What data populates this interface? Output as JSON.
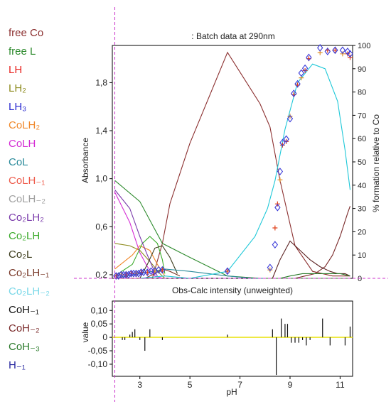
{
  "legend": [
    {
      "label": "free Co",
      "color": "#8b2f2f"
    },
    {
      "label": "free L",
      "color": "#2d8a2d"
    },
    {
      "label": "LH",
      "color": "#e8231f"
    },
    {
      "label": "LH₂",
      "color": "#8c8a1c"
    },
    {
      "label": "LH₃",
      "color": "#2a2ad0"
    },
    {
      "label": "CoLH₂",
      "color": "#f0882a"
    },
    {
      "label": "CoLH",
      "color": "#d42ad4"
    },
    {
      "label": "CoL",
      "color": "#2a8a9a"
    },
    {
      "label": "CoLH₋₁",
      "color": "#ee5a4a"
    },
    {
      "label": "CoLH₋₂",
      "color": "#a0a0a0"
    },
    {
      "label": "Co₂LH₂",
      "color": "#7a3aaa"
    },
    {
      "label": "Co₂LH",
      "color": "#3aaa2a",
      "highlight": true
    },
    {
      "label": "Co₂L",
      "color": "#3a3a1a"
    },
    {
      "label": "Co₂LH₋₁",
      "color": "#7a3a2a"
    },
    {
      "label": "Co₂LH₋₂",
      "color": "#7ad8e8",
      "highlight": true
    },
    {
      "label": "CoH₋₁",
      "color": "#101010"
    },
    {
      "label": "CoH₋₂",
      "color": "#7a2a2a"
    },
    {
      "label": "CoH₋₃",
      "color": "#2a7a2a"
    },
    {
      "label": "H₋₁",
      "color": "#2a2aa0"
    }
  ],
  "colors": {
    "frame": "#000000",
    "axes_text": "#222222",
    "cursor": "#cc33cc",
    "obs": "#3a3ad8",
    "calc": "#e0401a",
    "calc_alt": "#e0902a",
    "residual_zero": "#e8e000"
  },
  "chart_data": [
    {
      "type": "line",
      "title": ": Batch data at 290nm",
      "xlabel": "",
      "ylabel": "Absorbance",
      "y2label": "% formation relative to Co",
      "xlim": [
        1.9,
        11.5
      ],
      "ylim": [
        0.17,
        2.11
      ],
      "y2lim": [
        0,
        100
      ],
      "yticks": [
        "0,2",
        "0,6",
        "1,0",
        "1,4",
        "1,8"
      ],
      "y2ticks": [
        "0",
        "10",
        "20",
        "30",
        "40",
        "50",
        "60",
        "70",
        "80",
        "90",
        "100"
      ],
      "cursor_x": 2.0,
      "cursor_y": 0.17,
      "species": [
        {
          "name": "free Co",
          "color": "#8b2f2f",
          "x": [
            2.0,
            3.0,
            3.5,
            3.9,
            4.2,
            5.0,
            6.5,
            7.8,
            8.2,
            8.6,
            9.2,
            9.9,
            10.7,
            11.4
          ],
          "y": [
            0,
            0,
            0,
            15,
            32,
            58,
            97,
            75,
            65,
            42,
            14,
            3,
            1,
            1
          ]
        },
        {
          "name": "free L",
          "color": "#2d8a2d",
          "x": [
            2.0,
            3.0,
            3.5,
            3.9,
            5.0,
            6.5,
            7.8,
            9.0,
            10.0,
            11.4
          ],
          "y": [
            42,
            33,
            23,
            15,
            9,
            1,
            0,
            0,
            0,
            0
          ]
        },
        {
          "name": "LH₂",
          "color": "#8c8a1c",
          "x": [
            2.0,
            2.6,
            3.0,
            3.5,
            3.8,
            4.0
          ],
          "y": [
            15,
            14,
            12,
            6,
            2,
            0
          ]
        },
        {
          "name": "CoLH₂",
          "color": "#f0882a",
          "x": [
            2.0,
            2.7,
            3.0,
            3.4,
            3.7,
            4.0
          ],
          "y": [
            4,
            10,
            14,
            12,
            6,
            1
          ]
        },
        {
          "name": "CoLH",
          "color": "#d42ad4",
          "x": [
            2.0,
            2.6,
            3.0,
            3.3,
            3.6,
            3.9
          ],
          "y": [
            37,
            24,
            11,
            5,
            1,
            0
          ]
        },
        {
          "name": "Co₂LH",
          "color": "#3aaa2a",
          "x": [
            2.0,
            2.7,
            3.1,
            3.4,
            3.7,
            3.9,
            4.0
          ],
          "y": [
            1,
            6,
            15,
            18,
            15,
            8,
            2
          ]
        },
        {
          "name": "Co₂LH₂",
          "color": "#7a3aaa",
          "x": [
            2.0,
            2.6,
            3.0,
            3.3,
            3.5,
            3.7
          ],
          "y": [
            38,
            30,
            18,
            10,
            5,
            1
          ]
        },
        {
          "name": "Co₂L",
          "color": "#3a3a1a",
          "x": [
            3.0,
            3.3,
            3.6,
            3.9,
            4.2,
            4.5
          ],
          "y": [
            0,
            6,
            13,
            14,
            9,
            2
          ]
        },
        {
          "name": "Co₂LH₋₁",
          "color": "#7a3a2a",
          "x": [
            3.2,
            3.6,
            3.9,
            4.2,
            4.6
          ],
          "y": [
            0,
            2,
            4,
            3,
            1
          ]
        },
        {
          "name": "CoL",
          "color": "#2a8a9a",
          "x": [
            2.0,
            3.0,
            4.0,
            5.0,
            6.5,
            7.5,
            8.0
          ],
          "y": [
            0,
            2,
            4,
            3,
            1,
            0,
            0
          ]
        },
        {
          "name": "Co₂LH₋₂",
          "color": "#1ec8d8",
          "x": [
            3.0,
            4.0,
            5.0,
            6.5,
            7.6,
            8.1,
            8.4,
            8.8,
            9.3,
            9.9,
            10.4,
            10.9,
            11.2,
            11.4
          ],
          "y": [
            0,
            1,
            0,
            3,
            18,
            30,
            42,
            64,
            84,
            92,
            90,
            76,
            55,
            38
          ]
        },
        {
          "name": "CoH₋₁",
          "color": "#7a2a2a",
          "x": [
            9.2,
            9.6,
            10.0,
            10.4,
            10.7,
            11.0,
            11.3,
            11.4
          ],
          "y": [
            0,
            1,
            2,
            5,
            10,
            18,
            28,
            31
          ]
        },
        {
          "name": "CoH₋₂",
          "color": "#5a2020",
          "x": [
            8.3,
            8.6,
            9.0,
            9.4,
            9.8,
            10.2,
            10.6,
            10.9,
            11.2,
            11.4
          ],
          "y": [
            0,
            8,
            16,
            12,
            8,
            5,
            3,
            2,
            2,
            1
          ]
        },
        {
          "name": "CoH₋₃",
          "color": "#2a7a2a",
          "x": [
            8.6,
            9.0,
            9.5,
            10.0,
            10.5,
            11.0,
            11.4
          ],
          "y": [
            0,
            1,
            2,
            2,
            2,
            2,
            1
          ]
        }
      ],
      "observed": {
        "x": [
          2.05,
          2.15,
          2.25,
          2.35,
          2.45,
          2.55,
          2.65,
          2.75,
          2.85,
          2.95,
          3.05,
          3.15,
          3.3,
          3.45,
          3.6,
          3.75,
          3.9,
          6.5,
          8.2,
          8.4,
          8.5,
          8.6,
          8.7,
          8.85,
          9.0,
          9.15,
          9.3,
          9.45,
          9.6,
          9.75,
          10.2,
          10.5,
          10.8,
          11.1,
          11.3,
          11.4
        ],
        "y": [
          0.19,
          0.19,
          0.2,
          0.2,
          0.2,
          0.2,
          0.21,
          0.21,
          0.21,
          0.21,
          0.22,
          0.22,
          0.22,
          0.23,
          0.23,
          0.24,
          0.24,
          0.23,
          0.26,
          0.45,
          0.76,
          1.06,
          1.3,
          1.33,
          1.5,
          1.71,
          1.79,
          1.88,
          1.92,
          2.01,
          2.09,
          2.06,
          2.07,
          2.07,
          2.06,
          2.04
        ],
        "symbol": "diamond"
      },
      "calculated": {
        "x": [
          2.05,
          2.25,
          2.45,
          2.65,
          2.85,
          3.05,
          3.3,
          3.6,
          3.9,
          6.5,
          8.2,
          8.4,
          8.5,
          8.6,
          8.7,
          8.85,
          9.0,
          9.15,
          9.3,
          9.45,
          9.6,
          9.75,
          10.2,
          10.5,
          10.8,
          11.1,
          11.3,
          11.4
        ],
        "y": [
          0.19,
          0.2,
          0.2,
          0.21,
          0.21,
          0.22,
          0.22,
          0.23,
          0.24,
          0.23,
          0.24,
          0.59,
          0.79,
          0.99,
          1.28,
          1.31,
          1.52,
          1.7,
          1.78,
          1.84,
          1.9,
          2.0,
          2.05,
          2.07,
          2.07,
          2.04,
          2.04,
          2.01
        ],
        "symbol": "plus"
      }
    },
    {
      "type": "bar",
      "title": "Obs-Calc intensity (unweighted)",
      "xlabel": "pH",
      "ylabel": "value",
      "xlim": [
        1.9,
        11.5
      ],
      "ylim": [
        -0.145,
        0.135
      ],
      "xticks": [
        "3",
        "5",
        "7",
        "9",
        "11"
      ],
      "xtick_values": [
        3,
        5,
        7,
        9,
        11
      ],
      "yticks": [
        "0,10",
        "0,05",
        "0",
        "-0,05",
        "-0,10"
      ],
      "ytick_values": [
        0.1,
        0.05,
        0,
        -0.05,
        -0.1
      ],
      "residuals": {
        "x": [
          2.3,
          2.4,
          2.5,
          2.6,
          2.7,
          2.8,
          3.0,
          3.2,
          3.4,
          3.9,
          6.5,
          8.3,
          8.45,
          8.65,
          8.8,
          8.9,
          9.05,
          9.2,
          9.35,
          9.5,
          9.65,
          9.8,
          10.3,
          10.6,
          10.9,
          11.2,
          11.4
        ],
        "y": [
          -0.01,
          -0.01,
          0.0,
          0.01,
          0.02,
          0.03,
          -0.01,
          -0.05,
          0.03,
          -0.01,
          0.01,
          0.03,
          -0.14,
          0.07,
          0.05,
          0.05,
          -0.02,
          -0.02,
          -0.02,
          -0.01,
          -0.03,
          -0.01,
          0.07,
          -0.03,
          0.0,
          -0.03,
          0.04
        ]
      }
    }
  ]
}
